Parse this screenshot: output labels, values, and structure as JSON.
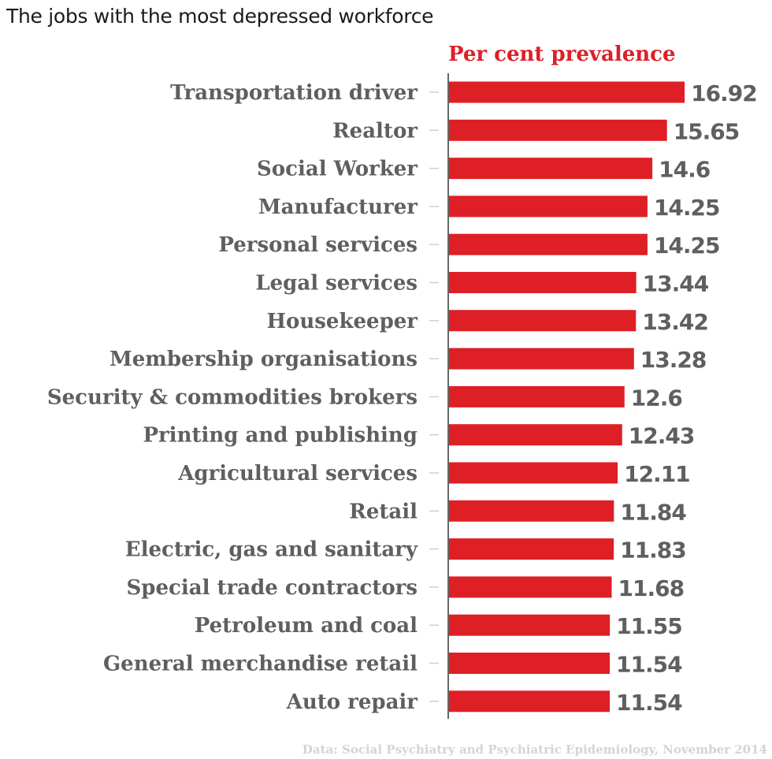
{
  "title": "The jobs with the most depressed workforce",
  "chart_data": {
    "type": "bar",
    "orientation": "horizontal",
    "title": "The jobs with the most depressed workforce",
    "xlabel": "Per cent prevalence",
    "ylabel": "",
    "xlim": [
      0,
      17
    ],
    "grid": false,
    "categories": [
      "Transportation driver",
      "Realtor",
      "Social Worker",
      "Manufacturer",
      "Personal services",
      "Legal services",
      "Housekeeper",
      "Membership organisations",
      "Security & commodities brokers",
      "Printing and publishing",
      "Agricultural services",
      "Retail",
      "Electric, gas and sanitary",
      "Special trade contractors",
      "Petroleum and coal",
      "General merchandise retail",
      "Auto repair"
    ],
    "values": [
      16.92,
      15.65,
      14.6,
      14.25,
      14.25,
      13.44,
      13.42,
      13.28,
      12.6,
      12.43,
      12.11,
      11.84,
      11.83,
      11.68,
      11.55,
      11.54,
      11.54
    ],
    "value_labels": [
      "16.92",
      "15.65",
      "14.6",
      "14.25",
      "14.25",
      "13.44",
      "13.42",
      "13.28",
      "12.6",
      "12.43",
      "12.11",
      "11.84",
      "11.83",
      "11.68",
      "11.55",
      "11.54",
      "11.54"
    ],
    "bar_color": "#de1f26",
    "label_color": "#5f5f5f",
    "axis_title_color": "#de1f26",
    "source": "Data: Social Psychiatry and Psychiatric Epidemiology, November 2014"
  }
}
